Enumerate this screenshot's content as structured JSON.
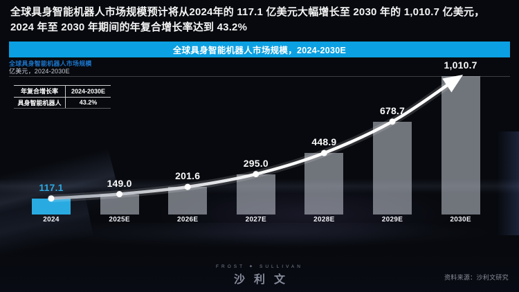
{
  "headline": {
    "line1": "全球具身智能机器人市场规模预计将从2024年的 117.1 亿美元大幅增长至 2030 年的 1,010.7 亿美元，",
    "line2": "2024 年至 2030 年期间的年复合增长率达到 43.2%"
  },
  "title_bar": {
    "label": "全球具身智能机器人市场规模，2024-2030E"
  },
  "chart_header": {
    "title": "全球具身智能机器人市场规模",
    "unit": "亿美元，2024-2030E"
  },
  "cagr_table": {
    "header": [
      "年复合增长率",
      "2024-2030E"
    ],
    "rows": [
      [
        "具身智能机器人",
        "43.2%"
      ]
    ]
  },
  "chart_data": {
    "type": "bar",
    "title": "全球具身智能机器人市场规模，2024-2030E",
    "ylabel": "亿美元",
    "categories": [
      "2024",
      "2025E",
      "2026E",
      "2027E",
      "2028E",
      "2029E",
      "2030E"
    ],
    "values": [
      117.1,
      149.0,
      201.6,
      295.0,
      448.9,
      678.7,
      1010.7
    ],
    "value_labels": [
      "117.1",
      "149.0",
      "201.6",
      "295.0",
      "448.9",
      "678.7",
      "1,010.7"
    ],
    "ylim": [
      0,
      1010.7
    ],
    "grid": false,
    "highlight_index": 0,
    "trend_line": true,
    "cagr_annotation": "43.2%"
  },
  "colors": {
    "accent_blue": "#0ba0e2",
    "bar_highlight": "#29abe2",
    "bar_default": "rgba(198,204,214,0.55)",
    "value_label": "#fafafa",
    "value_label_highlight": "#2aa9e2",
    "trend_line": "#ffffff"
  },
  "footer": {
    "logo_top": "FROST ✦ SULLIVAN",
    "logo_main": "沙利文",
    "source": "资料来源：沙利文研究"
  }
}
